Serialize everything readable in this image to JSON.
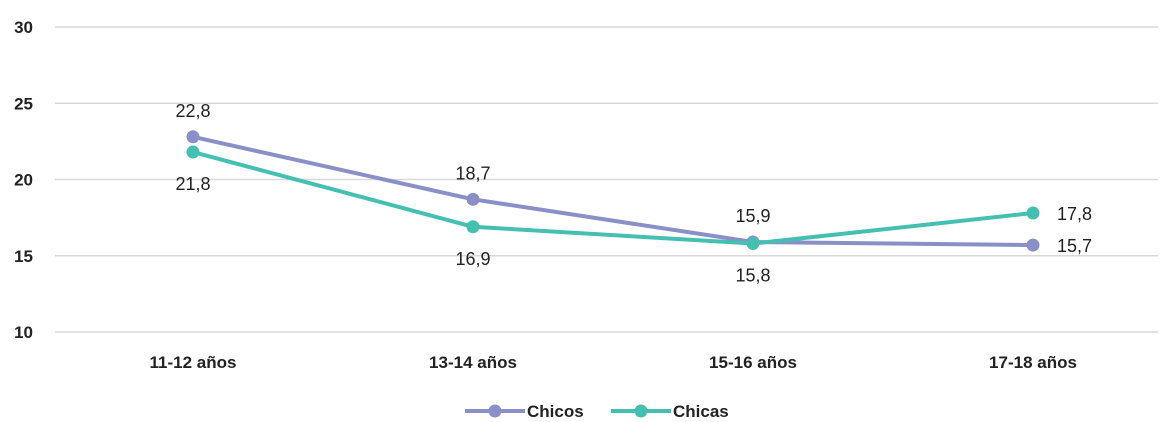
{
  "chart_data": {
    "type": "line",
    "categories": [
      "11-12 años",
      "13-14 años",
      "15-16 años",
      "17-18 años"
    ],
    "series": [
      {
        "name": "Chicos",
        "values": [
          22.8,
          18.7,
          15.9,
          15.7
        ],
        "labels": [
          "22,8",
          "18,7",
          "15,9",
          "15,7"
        ],
        "color": "#8a8fc8"
      },
      {
        "name": "Chicas",
        "values": [
          21.8,
          16.9,
          15.8,
          17.8
        ],
        "labels": [
          "21,8",
          "16,9",
          "15,8",
          "17,8"
        ],
        "color": "#46bfb3"
      }
    ],
    "yticks": [
      "10",
      "15",
      "20",
      "25",
      "30"
    ],
    "ylim": [
      10,
      30
    ],
    "grid": true,
    "gridColor": "#d9d9d9",
    "legend": "bottom-center",
    "title": "",
    "xlabel": "",
    "ylabel": ""
  }
}
